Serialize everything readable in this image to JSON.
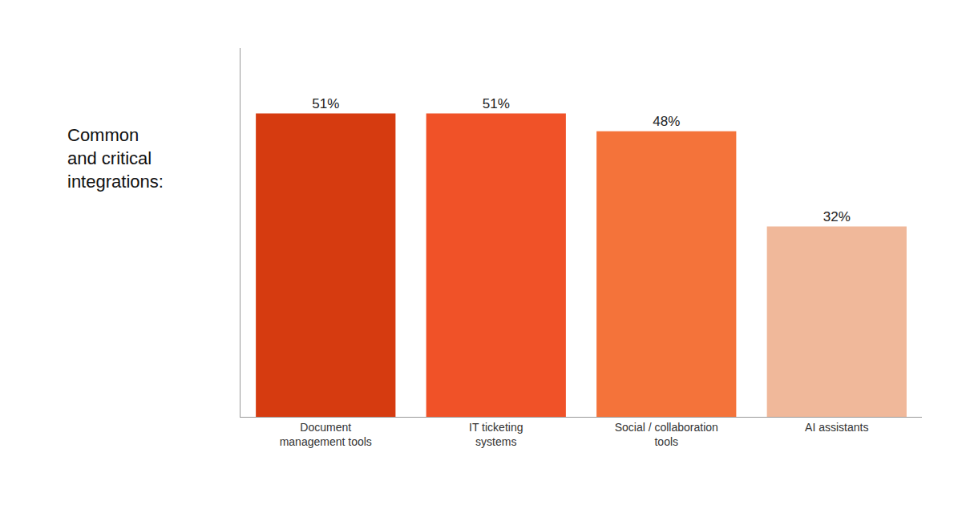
{
  "chart_data": {
    "type": "bar",
    "title": "Common\nand critical\nintegrations:",
    "categories": [
      "Document\nmanagement tools",
      "IT ticketing\nsystems",
      "Social / collaboration\ntools",
      "AI assistants"
    ],
    "values": [
      51,
      51,
      48,
      32
    ],
    "value_labels": [
      "51%",
      "51%",
      "48%",
      "32%"
    ],
    "colors": [
      "#D63B10",
      "#F05228",
      "#F4733A",
      "#F0B89A"
    ],
    "ylim": [
      0,
      62
    ],
    "data_labels": true,
    "tick_labels": "x",
    "grid": false
  }
}
